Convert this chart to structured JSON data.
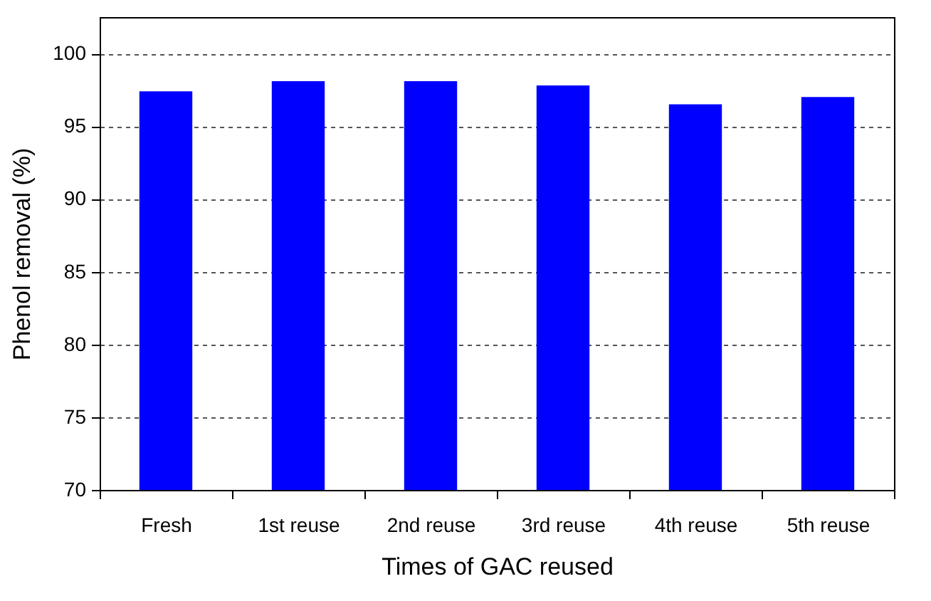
{
  "chart_data": {
    "type": "bar",
    "xlabel": "Times of GAC reused",
    "ylabel": "Phenol removal (%)",
    "categories": [
      "Fresh",
      "1st reuse",
      "2nd reuse",
      "3rd reuse",
      "4th reuse",
      "5th reuse"
    ],
    "values": [
      97.4,
      98.1,
      98.1,
      97.8,
      96.5,
      97.0
    ],
    "color": "#0000ff",
    "ylim": [
      70,
      102.5
    ],
    "yticks": [
      70,
      75,
      80,
      85,
      90,
      95,
      100
    ],
    "grid": "y"
  }
}
